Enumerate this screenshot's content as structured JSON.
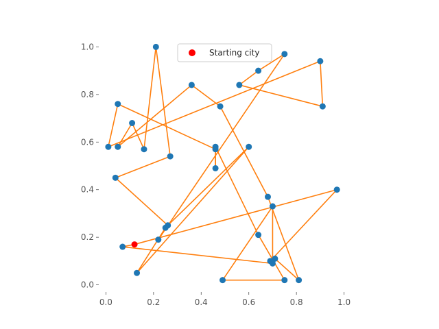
{
  "chart_data": {
    "type": "scatter",
    "xlim": [
      -0.03,
      1.03
    ],
    "ylim": [
      -0.03,
      1.03
    ],
    "x_ticks": [
      0.0,
      0.2,
      0.4,
      0.6,
      0.8,
      1.0
    ],
    "y_ticks": [
      0.0,
      0.2,
      0.4,
      0.6,
      0.8,
      1.0
    ],
    "x_tick_labels": [
      "0.0",
      "0.2",
      "0.4",
      "0.6",
      "0.8",
      "1.0"
    ],
    "y_tick_labels": [
      "0.0",
      "0.2",
      "0.4",
      "0.6",
      "0.8",
      "1.0"
    ],
    "grid": false,
    "legend": {
      "placement": "top-center",
      "entries": [
        {
          "label": "Starting city",
          "color": "#ff0000"
        }
      ]
    },
    "colors": {
      "cities": "#1f77b4",
      "route": "#ff7f0e",
      "start": "#ff0000"
    },
    "cities": [
      {
        "x": 0.12,
        "y": 0.17
      },
      {
        "x": 0.97,
        "y": 0.4
      },
      {
        "x": 0.69,
        "y": 0.1
      },
      {
        "x": 0.71,
        "y": 0.11
      },
      {
        "x": 0.81,
        "y": 0.02
      },
      {
        "x": 0.68,
        "y": 0.37
      },
      {
        "x": 0.48,
        "y": 0.75
      },
      {
        "x": 0.36,
        "y": 0.84
      },
      {
        "x": 0.05,
        "y": 0.58
      },
      {
        "x": 0.11,
        "y": 0.68
      },
      {
        "x": 0.16,
        "y": 0.57
      },
      {
        "x": 0.21,
        "y": 1.0
      },
      {
        "x": 0.27,
        "y": 0.54
      },
      {
        "x": 0.04,
        "y": 0.45
      },
      {
        "x": 0.26,
        "y": 0.25
      },
      {
        "x": 0.6,
        "y": 0.58
      },
      {
        "x": 0.13,
        "y": 0.05
      },
      {
        "x": 0.25,
        "y": 0.24
      },
      {
        "x": 0.22,
        "y": 0.19
      },
      {
        "x": 0.75,
        "y": 0.97
      },
      {
        "x": 0.64,
        "y": 0.9
      },
      {
        "x": 0.56,
        "y": 0.84
      },
      {
        "x": 0.91,
        "y": 0.75
      },
      {
        "x": 0.9,
        "y": 0.94
      },
      {
        "x": 0.01,
        "y": 0.58
      },
      {
        "x": 0.05,
        "y": 0.76
      },
      {
        "x": 0.46,
        "y": 0.57
      },
      {
        "x": 0.46,
        "y": 0.49
      },
      {
        "x": 0.46,
        "y": 0.58
      },
      {
        "x": 0.64,
        "y": 0.21
      },
      {
        "x": 0.75,
        "y": 0.02
      },
      {
        "x": 0.49,
        "y": 0.02
      },
      {
        "x": 0.7,
        "y": 0.33
      },
      {
        "x": 0.7,
        "y": 0.09
      },
      {
        "x": 0.07,
        "y": 0.16
      }
    ],
    "start_index": 0,
    "route": [
      0,
      1,
      2,
      3,
      4,
      5,
      6,
      7,
      8,
      9,
      10,
      11,
      12,
      13,
      14,
      15,
      16,
      17,
      18,
      19,
      20,
      21,
      22,
      23,
      24,
      25,
      26,
      27,
      28,
      29,
      30,
      31,
      32,
      33,
      34,
      0
    ]
  }
}
